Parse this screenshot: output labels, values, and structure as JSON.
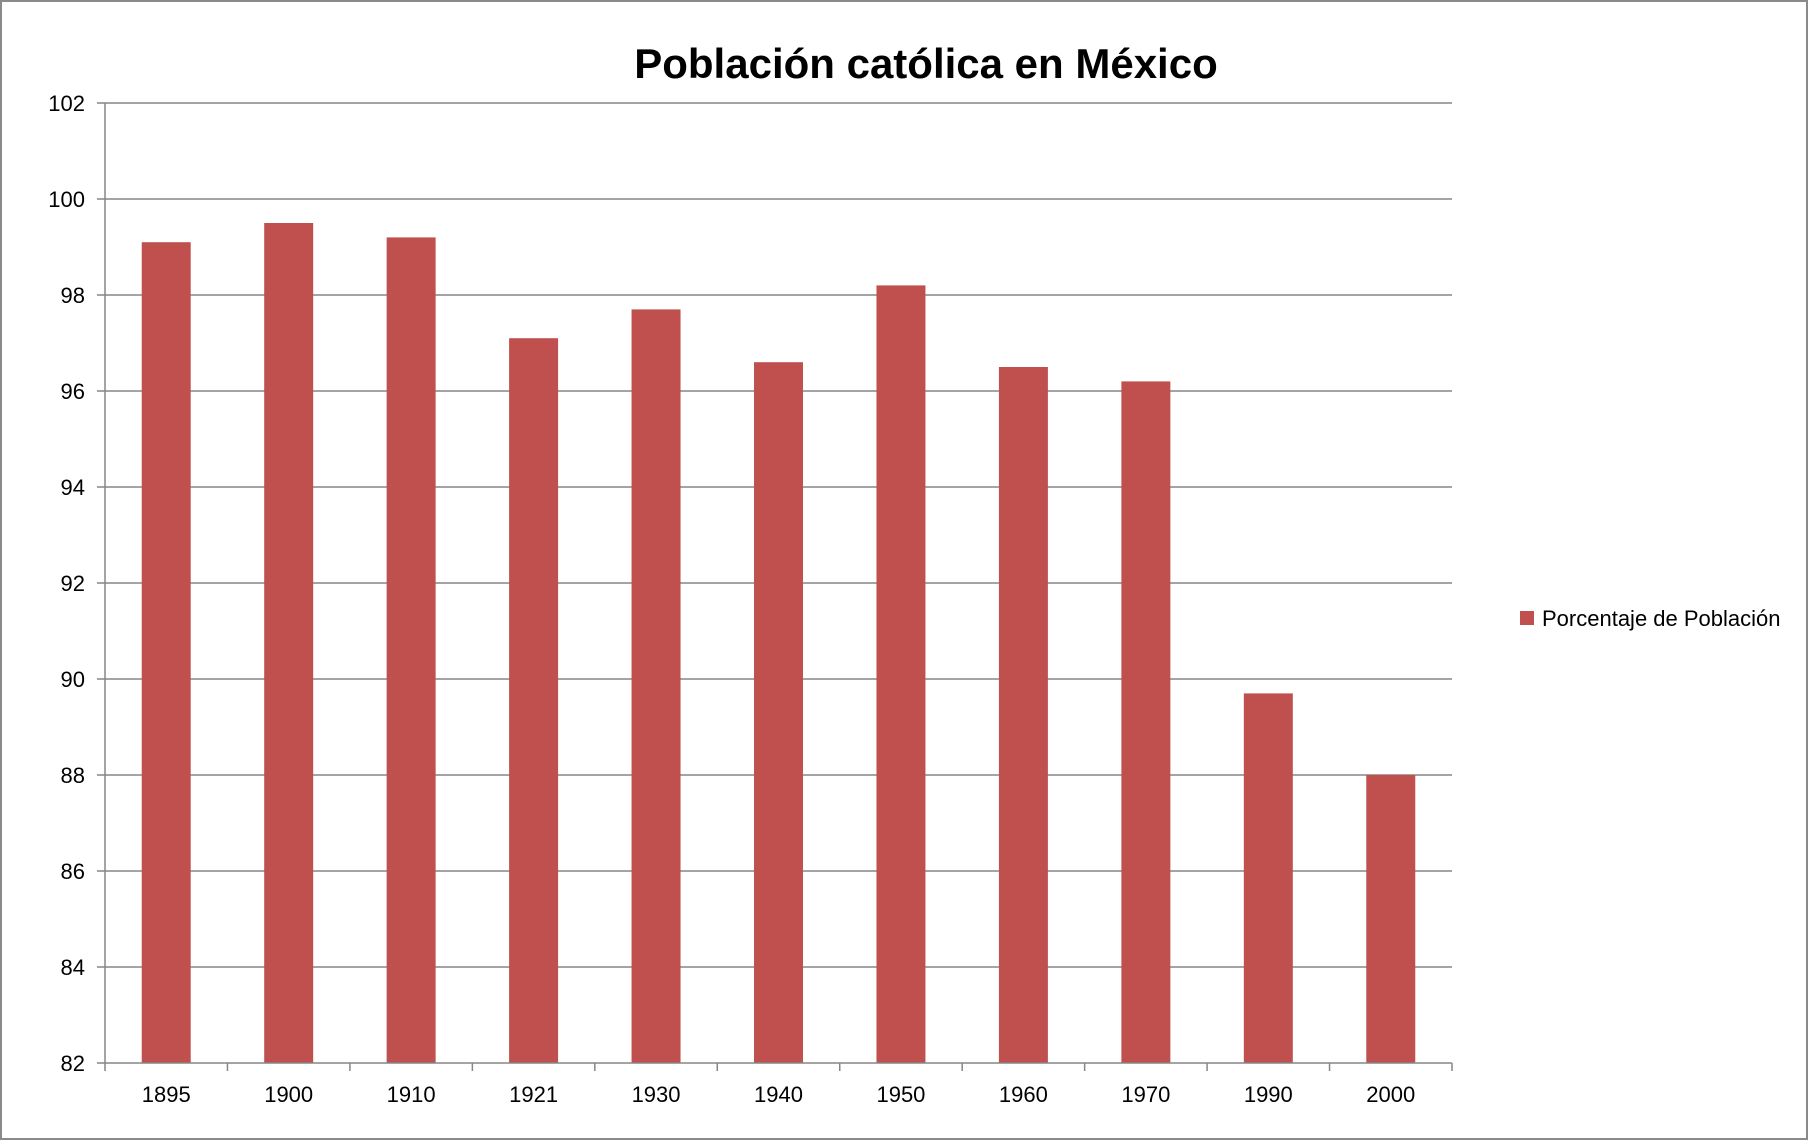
{
  "chart_data": {
    "type": "bar",
    "title": "Población católica en México",
    "xlabel": "",
    "ylabel": "",
    "categories": [
      "1895",
      "1900",
      "1910",
      "1921",
      "1930",
      "1940",
      "1950",
      "1960",
      "1970",
      "1990",
      "2000"
    ],
    "series": [
      {
        "name": "Porcentaje de Población",
        "color": "#C0504D",
        "values": [
          99.1,
          99.5,
          99.2,
          97.1,
          97.7,
          96.6,
          98.2,
          96.5,
          96.2,
          89.7,
          88.0
        ]
      }
    ],
    "ylim": [
      82,
      102
    ],
    "yticks": [
      "82",
      "84",
      "86",
      "88",
      "90",
      "92",
      "94",
      "96",
      "98",
      "100",
      "102"
    ],
    "grid": true,
    "legend_position": "right"
  }
}
